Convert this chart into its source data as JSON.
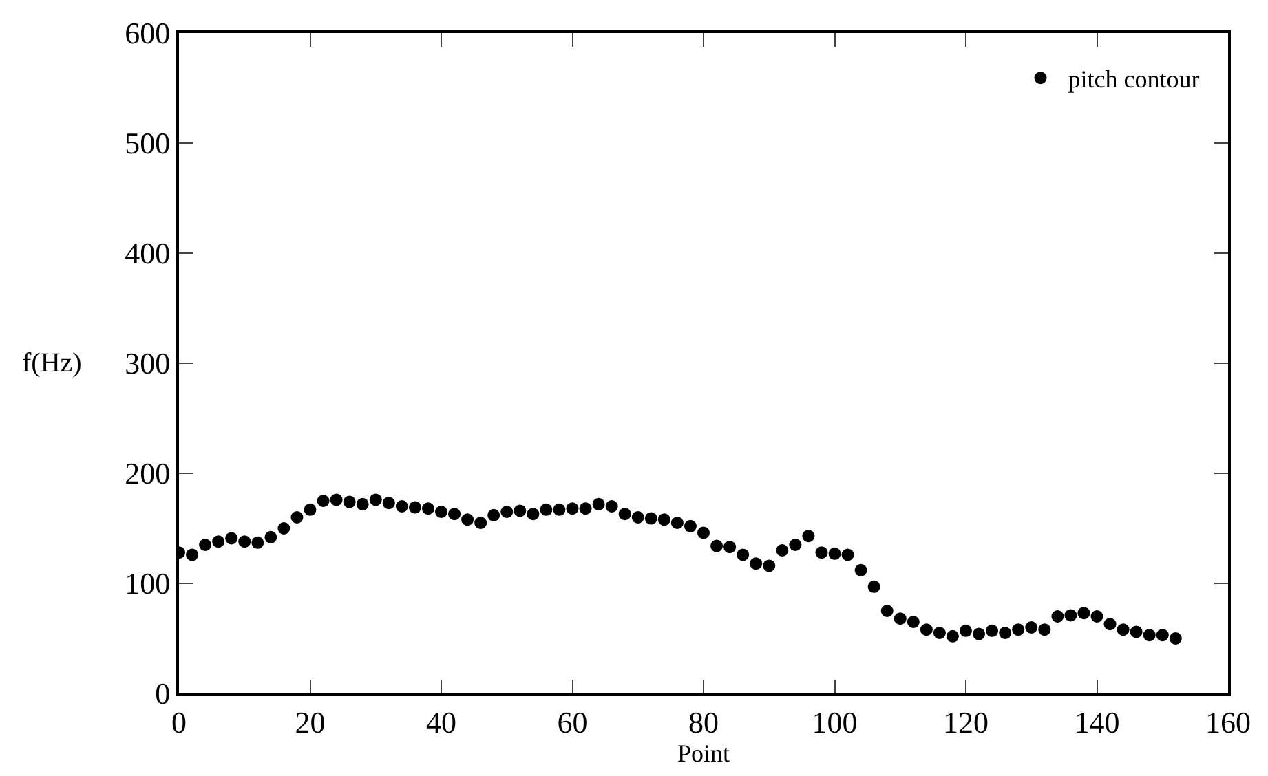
{
  "chart_data": {
    "type": "scatter",
    "xlabel": "Point",
    "ylabel": "f(Hz)",
    "xlim": [
      0,
      160
    ],
    "ylim": [
      0,
      600
    ],
    "xticks": [
      0,
      20,
      40,
      60,
      80,
      100,
      120,
      140,
      160
    ],
    "yticks": [
      0,
      100,
      200,
      300,
      400,
      500,
      600
    ],
    "legend": "top right",
    "marker": "circle",
    "x": [
      0,
      2,
      4,
      6,
      8,
      10,
      12,
      14,
      16,
      18,
      20,
      22,
      24,
      26,
      28,
      30,
      32,
      34,
      36,
      38,
      40,
      42,
      44,
      46,
      48,
      50,
      52,
      54,
      56,
      58,
      60,
      62,
      64,
      66,
      68,
      70,
      72,
      74,
      76,
      78,
      80,
      82,
      84,
      86,
      88,
      90,
      92,
      94,
      96,
      98,
      100,
      102,
      104,
      106,
      108,
      110,
      112,
      114,
      116,
      118,
      120,
      122,
      124,
      126,
      128,
      130,
      132,
      134,
      136,
      138,
      140,
      142,
      144,
      146,
      148,
      150,
      152
    ],
    "series": [
      {
        "name": "pitch contour",
        "color": "#000000",
        "values": [
          128,
          126,
          135,
          138,
          141,
          138,
          137,
          142,
          150,
          160,
          167,
          175,
          176,
          174,
          172,
          176,
          173,
          170,
          169,
          168,
          165,
          163,
          158,
          155,
          162,
          165,
          166,
          163,
          167,
          167,
          168,
          168,
          172,
          170,
          163,
          160,
          159,
          158,
          155,
          152,
          146,
          134,
          133,
          126,
          118,
          116,
          130,
          135,
          143,
          128,
          127,
          126,
          112,
          97,
          75,
          68,
          65,
          58,
          55,
          52,
          57,
          54,
          57,
          55,
          58,
          60,
          58,
          70,
          71,
          73,
          70,
          63,
          58,
          56,
          53,
          53,
          50
        ]
      }
    ]
  }
}
